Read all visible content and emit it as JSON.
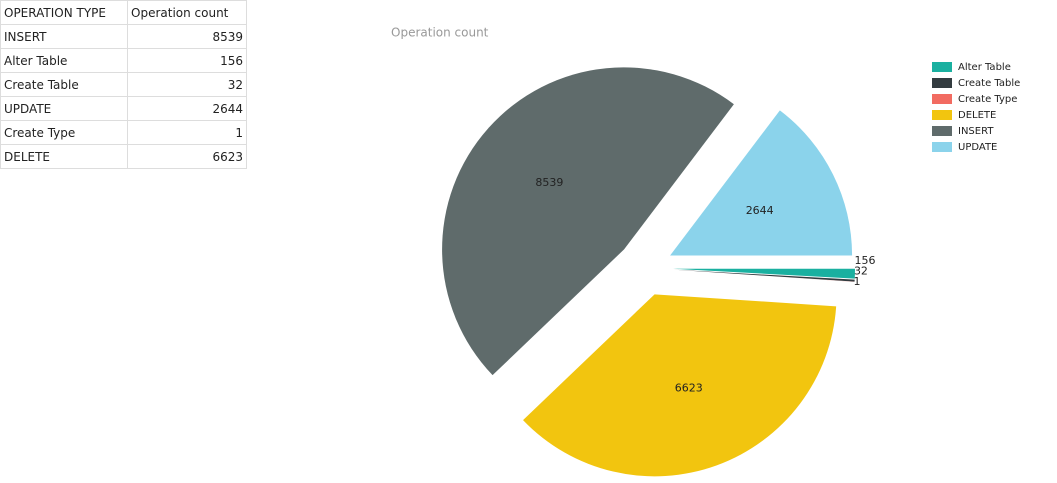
{
  "table": {
    "header": [
      "OPERATION TYPE",
      "Operation count"
    ],
    "rows": [
      [
        "INSERT",
        8539
      ],
      [
        "Alter Table",
        156
      ],
      [
        "Create Table",
        32
      ],
      [
        "UPDATE",
        2644
      ],
      [
        "Create Type",
        1
      ],
      [
        "DELETE",
        6623
      ]
    ]
  },
  "chart_data": {
    "type": "pie",
    "title": "Operation count",
    "categories": [
      "Alter Table",
      "Create Table",
      "Create Type",
      "DELETE",
      "INSERT",
      "UPDATE"
    ],
    "values": [
      156,
      32,
      1,
      6623,
      8539,
      2644
    ],
    "colors": [
      "#1ab0a0",
      "#333c40",
      "#f26b61",
      "#f2c50f",
      "#5f6b6b",
      "#8bd3eb"
    ],
    "legend": "top-right"
  }
}
